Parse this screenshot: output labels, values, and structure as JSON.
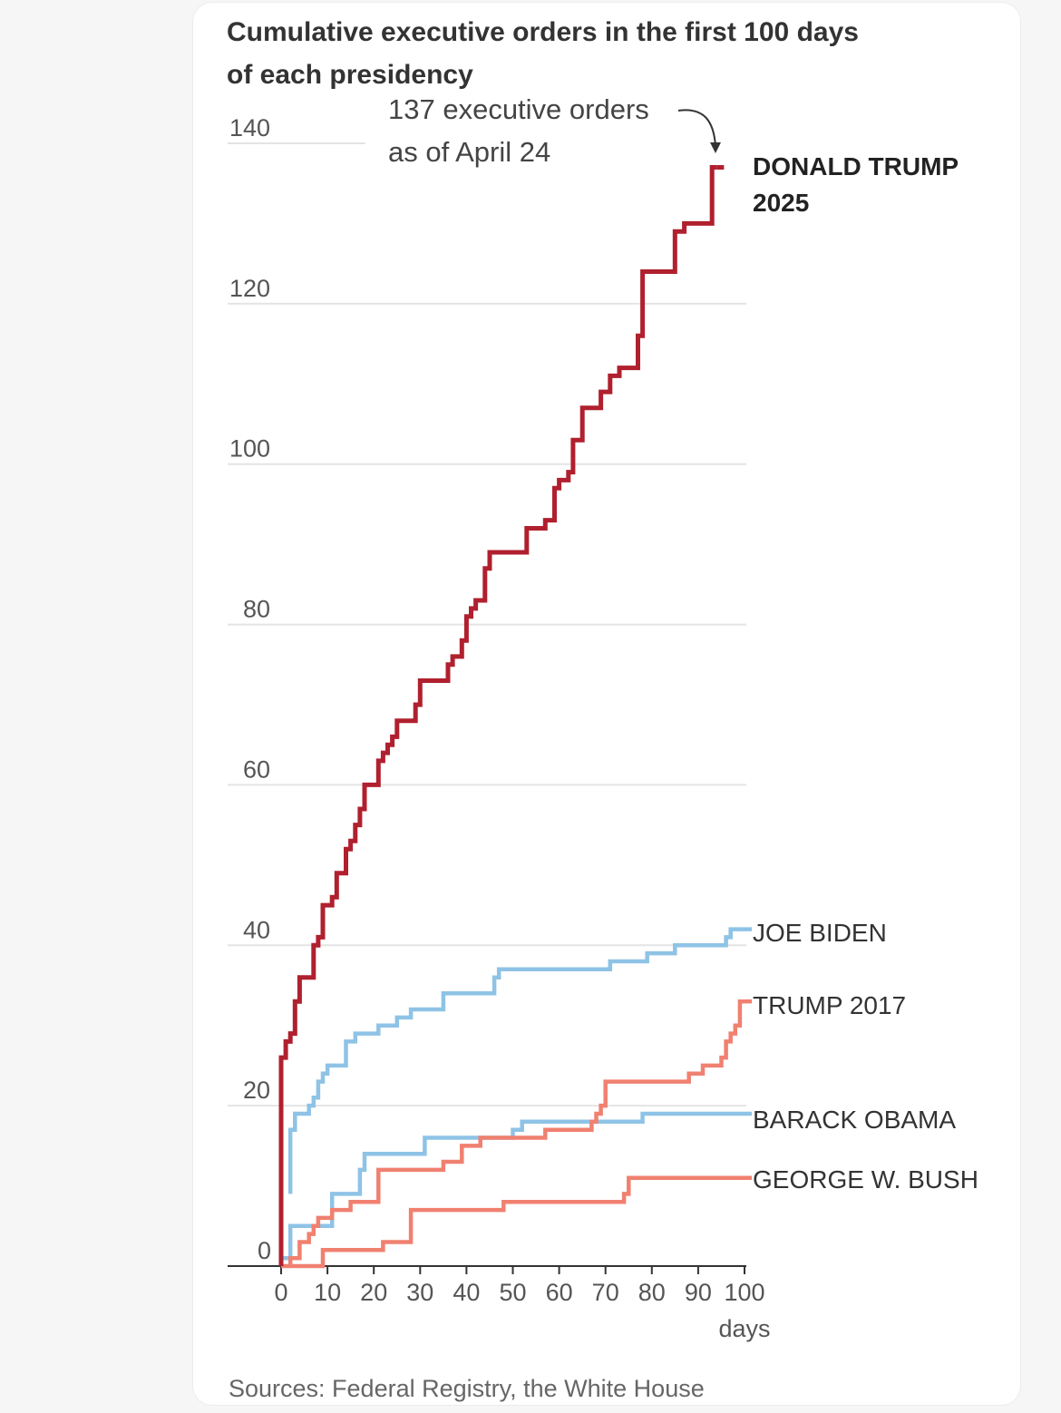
{
  "chart_data": {
    "type": "line",
    "title": "Cumulative executive orders in the first 100 days of each presidency",
    "title_lines": [
      "Cumulative executive orders in the first 100 days",
      "of each presidency"
    ],
    "xlabel": "days",
    "ylabel": "",
    "xlim": [
      0,
      100
    ],
    "ylim": [
      0,
      140
    ],
    "x_ticks": [
      0,
      10,
      20,
      30,
      40,
      50,
      60,
      70,
      80,
      90,
      100
    ],
    "y_ticks": [
      0,
      20,
      40,
      60,
      80,
      100,
      120,
      140
    ],
    "grid": true,
    "legend": "direct labels at line ends",
    "annotation": {
      "lines": [
        "137 executive orders",
        "as of April 24"
      ],
      "x": 94,
      "y": 137
    },
    "source": "Sources: Federal Registry, the White House",
    "series": [
      {
        "name": "DONALD TRUMP 2025",
        "label_lines": [
          "DONALD TRUMP",
          "2025"
        ],
        "color": "#b0202e",
        "points": [
          [
            0,
            0
          ],
          [
            0,
            26
          ],
          [
            1,
            26
          ],
          [
            1,
            28
          ],
          [
            2,
            28
          ],
          [
            2,
            29
          ],
          [
            3,
            29
          ],
          [
            3,
            33
          ],
          [
            4,
            33
          ],
          [
            4,
            36
          ],
          [
            7,
            36
          ],
          [
            7,
            40
          ],
          [
            8,
            40
          ],
          [
            8,
            41
          ],
          [
            9,
            41
          ],
          [
            9,
            45
          ],
          [
            11,
            45
          ],
          [
            11,
            46
          ],
          [
            12,
            46
          ],
          [
            12,
            49
          ],
          [
            14,
            49
          ],
          [
            14,
            52
          ],
          [
            15,
            52
          ],
          [
            15,
            53
          ],
          [
            16,
            53
          ],
          [
            16,
            55
          ],
          [
            17,
            55
          ],
          [
            17,
            57
          ],
          [
            18,
            57
          ],
          [
            18,
            60
          ],
          [
            21,
            60
          ],
          [
            21,
            63
          ],
          [
            22,
            63
          ],
          [
            22,
            64
          ],
          [
            23,
            64
          ],
          [
            23,
            65
          ],
          [
            24,
            65
          ],
          [
            24,
            66
          ],
          [
            25,
            66
          ],
          [
            25,
            68
          ],
          [
            29,
            68
          ],
          [
            29,
            70
          ],
          [
            30,
            70
          ],
          [
            30,
            73
          ],
          [
            36,
            73
          ],
          [
            36,
            75
          ],
          [
            37,
            75
          ],
          [
            37,
            76
          ],
          [
            39,
            76
          ],
          [
            39,
            78
          ],
          [
            40,
            78
          ],
          [
            40,
            81
          ],
          [
            41,
            81
          ],
          [
            41,
            82
          ],
          [
            42,
            82
          ],
          [
            42,
            83
          ],
          [
            44,
            83
          ],
          [
            44,
            87
          ],
          [
            45,
            87
          ],
          [
            45,
            89
          ],
          [
            53,
            89
          ],
          [
            53,
            92
          ],
          [
            57,
            92
          ],
          [
            57,
            93
          ],
          [
            59,
            93
          ],
          [
            59,
            97
          ],
          [
            60,
            97
          ],
          [
            60,
            98
          ],
          [
            62,
            98
          ],
          [
            62,
            99
          ],
          [
            63,
            99
          ],
          [
            63,
            103
          ],
          [
            65,
            103
          ],
          [
            65,
            107
          ],
          [
            69,
            107
          ],
          [
            69,
            109
          ],
          [
            71,
            109
          ],
          [
            71,
            111
          ],
          [
            73,
            111
          ],
          [
            73,
            112
          ],
          [
            77,
            112
          ],
          [
            77,
            116
          ],
          [
            78,
            116
          ],
          [
            78,
            124
          ],
          [
            85,
            124
          ],
          [
            85,
            129
          ],
          [
            87,
            129
          ],
          [
            87,
            130
          ],
          [
            93,
            130
          ],
          [
            93,
            137
          ],
          [
            94,
            137
          ]
        ]
      },
      {
        "name": "JOE BIDEN",
        "label_lines": [
          "JOE BIDEN"
        ],
        "color": "#8ec3e6",
        "points": [
          [
            2,
            9
          ],
          [
            2,
            17
          ],
          [
            3,
            17
          ],
          [
            3,
            19
          ],
          [
            6,
            19
          ],
          [
            6,
            20
          ],
          [
            7,
            20
          ],
          [
            7,
            21
          ],
          [
            8,
            21
          ],
          [
            8,
            23
          ],
          [
            9,
            23
          ],
          [
            9,
            24
          ],
          [
            10,
            24
          ],
          [
            10,
            25
          ],
          [
            14,
            25
          ],
          [
            14,
            28
          ],
          [
            16,
            28
          ],
          [
            16,
            29
          ],
          [
            21,
            29
          ],
          [
            21,
            30
          ],
          [
            25,
            30
          ],
          [
            25,
            31
          ],
          [
            28,
            31
          ],
          [
            28,
            32
          ],
          [
            35,
            32
          ],
          [
            35,
            34
          ],
          [
            46,
            34
          ],
          [
            46,
            36
          ],
          [
            47,
            36
          ],
          [
            47,
            37
          ],
          [
            71,
            37
          ],
          [
            71,
            38
          ],
          [
            79,
            38
          ],
          [
            79,
            39
          ],
          [
            85,
            39
          ],
          [
            85,
            40
          ],
          [
            96,
            40
          ],
          [
            96,
            41
          ],
          [
            97,
            41
          ],
          [
            97,
            42
          ],
          [
            100,
            42
          ]
        ]
      },
      {
        "name": "TRUMP 2017",
        "label_lines": [
          "TRUMP 2017"
        ],
        "color": "#f08070",
        "points": [
          [
            2,
            0
          ],
          [
            2,
            1
          ],
          [
            4,
            1
          ],
          [
            4,
            3
          ],
          [
            6,
            3
          ],
          [
            6,
            4
          ],
          [
            7,
            4
          ],
          [
            7,
            5
          ],
          [
            8,
            5
          ],
          [
            8,
            6
          ],
          [
            11,
            6
          ],
          [
            11,
            7
          ],
          [
            15,
            7
          ],
          [
            15,
            8
          ],
          [
            21,
            8
          ],
          [
            21,
            12
          ],
          [
            35,
            12
          ],
          [
            35,
            13
          ],
          [
            39,
            13
          ],
          [
            39,
            15
          ],
          [
            43,
            15
          ],
          [
            43,
            16
          ],
          [
            57,
            16
          ],
          [
            57,
            17
          ],
          [
            67,
            17
          ],
          [
            67,
            18
          ],
          [
            68,
            18
          ],
          [
            68,
            19
          ],
          [
            69,
            19
          ],
          [
            69,
            20
          ],
          [
            70,
            20
          ],
          [
            70,
            23
          ],
          [
            88,
            23
          ],
          [
            88,
            24
          ],
          [
            91,
            24
          ],
          [
            91,
            25
          ],
          [
            95,
            25
          ],
          [
            95,
            26
          ],
          [
            96,
            26
          ],
          [
            96,
            28
          ],
          [
            97,
            28
          ],
          [
            97,
            29
          ],
          [
            98,
            29
          ],
          [
            98,
            30
          ],
          [
            99,
            30
          ],
          [
            99,
            33
          ],
          [
            100,
            33
          ]
        ]
      },
      {
        "name": "BARACK OBAMA",
        "label_lines": [
          "BARACK OBAMA"
        ],
        "color": "#8ec3e6",
        "points": [
          [
            0,
            0
          ],
          [
            0,
            1
          ],
          [
            2,
            1
          ],
          [
            2,
            5
          ],
          [
            11,
            5
          ],
          [
            11,
            9
          ],
          [
            17,
            9
          ],
          [
            17,
            12
          ],
          [
            18,
            12
          ],
          [
            18,
            14
          ],
          [
            31,
            14
          ],
          [
            31,
            16
          ],
          [
            50,
            16
          ],
          [
            50,
            17
          ],
          [
            52,
            17
          ],
          [
            52,
            18
          ],
          [
            78,
            18
          ],
          [
            78,
            19
          ],
          [
            100,
            19
          ]
        ]
      },
      {
        "name": "GEORGE W. BUSH",
        "label_lines": [
          "GEORGE W. BUSH"
        ],
        "color": "#f08070",
        "points": [
          [
            0,
            0
          ],
          [
            9,
            0
          ],
          [
            9,
            2
          ],
          [
            22,
            2
          ],
          [
            22,
            3
          ],
          [
            28,
            3
          ],
          [
            28,
            7
          ],
          [
            48,
            7
          ],
          [
            48,
            8
          ],
          [
            74,
            8
          ],
          [
            74,
            9
          ],
          [
            75,
            9
          ],
          [
            75,
            11
          ],
          [
            100,
            11
          ]
        ]
      }
    ]
  }
}
